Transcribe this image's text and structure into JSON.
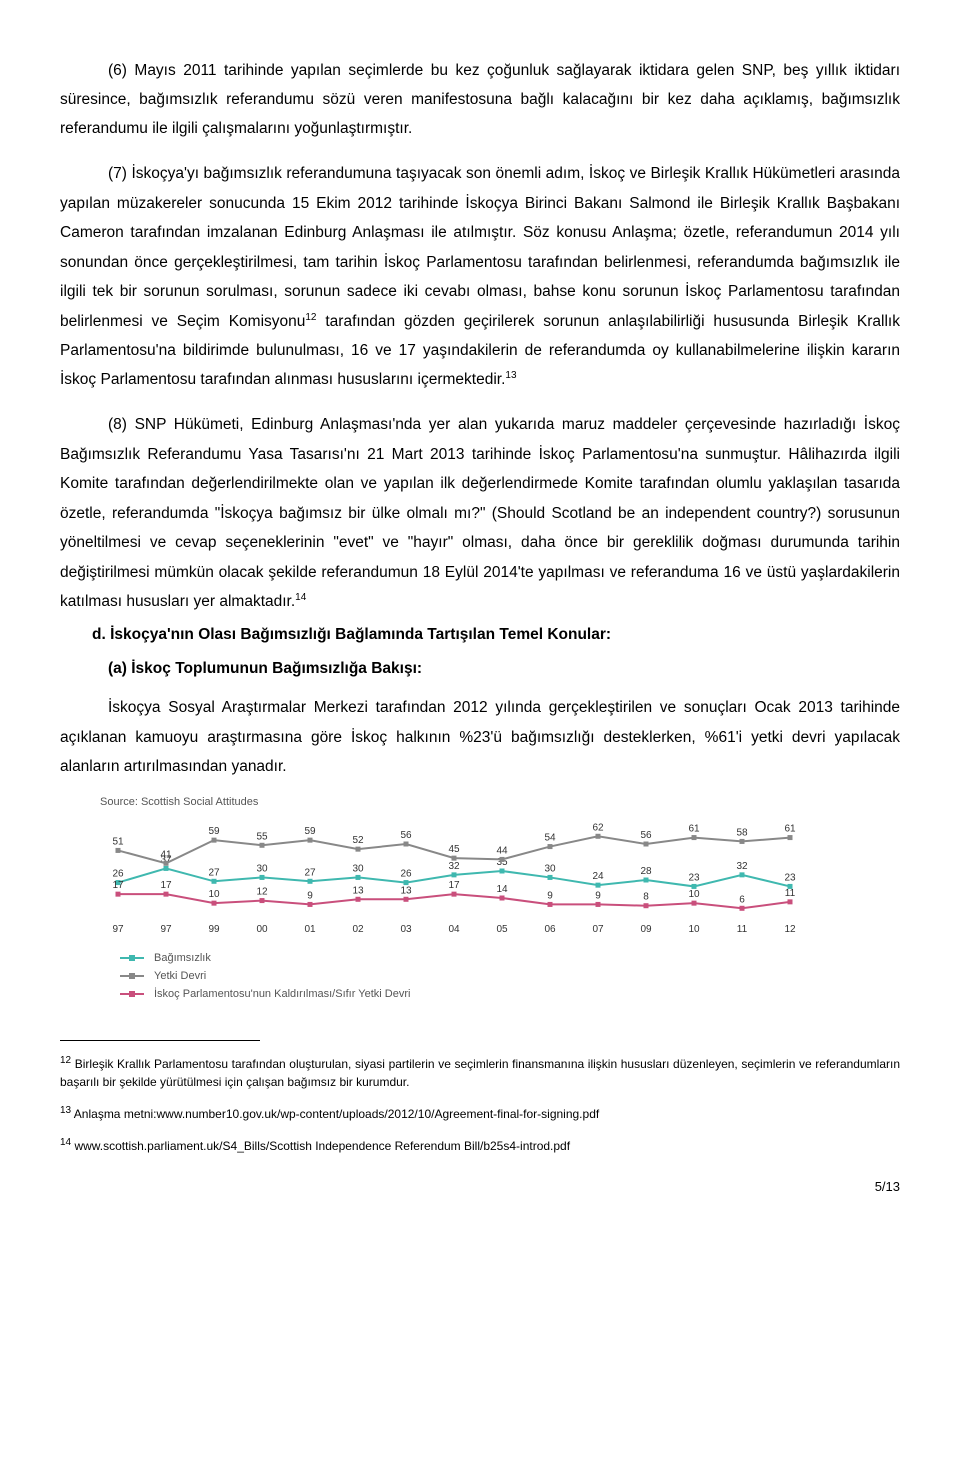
{
  "paragraphs": {
    "p6": "(6) Mayıs 2011 tarihinde yapılan seçimlerde bu kez çoğunluk sağlayarak iktidara gelen SNP, beş yıllık iktidarı süresince, bağımsızlık referandumu sözü veren manifestosuna bağlı kalacağını bir kez daha açıklamış, bağımsızlık referandumu ile ilgili çalışmalarını yoğunlaştırmıştır.",
    "p7": "(7) İskoçya'yı bağımsızlık referandumuna taşıyacak son önemli adım, İskoç ve Birleşik Krallık Hükümetleri arasında yapılan müzakereler sonucunda 15 Ekim 2012 tarihinde İskoçya Birinci Bakanı Salmond ile Birleşik Krallık Başbakanı Cameron tarafından imzalanan Edinburg Anlaşması ile atılmıştır. Söz konusu Anlaşma; özetle, referandumun 2014 yılı sonundan önce gerçekleştirilmesi, tam tarihin İskoç Parlamentosu tarafından belirlenmesi, referandumda bağımsızlık ile ilgili tek bir sorunun sorulması, sorunun sadece iki cevabı olması, bahse konu sorunun İskoç Parlamentosu tarafından belirlenmesi ve Seçim Komisyonu",
    "p7b": " tarafından gözden geçirilerek sorunun anlaşılabilirliği hususunda Birleşik Krallık Parlamentosu'na bildirimde bulunulması, 16 ve 17 yaşındakilerin de referandumda oy kullanabilmelerine ilişkin kararın İskoç Parlamentosu tarafından alınması hususlarını içermektedir.",
    "p8": "(8) SNP Hükümeti, Edinburg Anlaşması'nda yer alan yukarıda maruz maddeler çerçevesinde hazırladığı İskoç Bağımsızlık Referandumu Yasa Tasarısı'nı 21 Mart 2013 tarihinde İskoç Parlamentosu'na sunmuştur. Hâlihazırda ilgili Komite tarafından değerlendirilmekte olan ve yapılan ilk değerlendirmede Komite tarafından olumlu yaklaşılan tasarıda özetle, referandumda \"İskoçya bağımsız bir ülke olmalı mı?\" (Should Scotland be an independent country?) sorusunun yöneltilmesi ve cevap seçeneklerinin \"evet\" ve \"hayır\" olması, daha önce bir gereklilik doğması durumunda tarihin değiştirilmesi mümkün olacak şekilde referandumun 18 Eylül 2014'te yapılması ve referanduma 16 ve üstü yaşlardakilerin katılması hususları yer almaktadır.",
    "heading_d": "d. İskoçya'nın Olası Bağımsızlığı Bağlamında Tartışılan Temel Konular:",
    "heading_a": "(a) İskoç Toplumunun Bağımsızlığa Bakışı:",
    "p_a": "İskoçya Sosyal Araştırmalar Merkezi tarafından 2012 yılında gerçekleştirilen ve sonuçları Ocak 2013 tarihinde açıklanan kamuoyu araştırmasına göre İskoç halkının %23'ü bağımsızlığı desteklerken, %61'i yetki devri yapılacak alanların artırılmasından yanadır."
  },
  "superscripts": {
    "s12": "12",
    "s13": "13",
    "s14": "14"
  },
  "chart": {
    "source": "Source: Scottish Social Attitudes",
    "type": "line",
    "years": [
      "97",
      "97",
      "99",
      "00",
      "01",
      "02",
      "03",
      "04",
      "05",
      "06",
      "07",
      "09",
      "10",
      "11",
      "12"
    ],
    "series": [
      {
        "name": "Bağımsızlık",
        "color": "#3fb8af",
        "values": [
          26,
          37,
          27,
          30,
          27,
          30,
          26,
          32,
          35,
          30,
          24,
          28,
          23,
          32,
          23
        ]
      },
      {
        "name": "Yetki Devri",
        "color": "#888888",
        "values": [
          51,
          41,
          59,
          55,
          59,
          52,
          56,
          45,
          44,
          54,
          62,
          56,
          61,
          58,
          61
        ]
      },
      {
        "name": "İskoç Parlamentosu'nun Kaldırılması/Sıfır Yetki Devri",
        "color": "#c94f7c",
        "values": [
          17,
          17,
          10,
          12,
          9,
          13,
          13,
          17,
          14,
          9,
          9,
          8,
          10,
          6,
          11
        ]
      }
    ],
    "ylim": [
      0,
      70
    ],
    "background": "#ffffff",
    "grid_color": "#eeeeee",
    "label_fontsize": 10,
    "line_width": 2,
    "marker": "square",
    "marker_size": 5
  },
  "footnotes": {
    "f12a": " Birleşik Krallık Parlamentosu tarafından oluşturulan, siyasi partilerin ve seçimlerin finansmanına ilişkin hususları düzenleyen, seçimlerin ve referandumların başarılı bir şekilde yürütülmesi için çalışan bağımsız bir kurumdur.",
    "f13a": " Anlaşma metni:www.number10.gov.uk/wp-content/uploads/2012/10/Agreement-final-for-signing.pdf",
    "f14a": " www.scottish.parliament.uk/S4_Bills/Scottish Independence Referendum Bill/b25s4-introd.pdf"
  },
  "pagenum": "5/13"
}
